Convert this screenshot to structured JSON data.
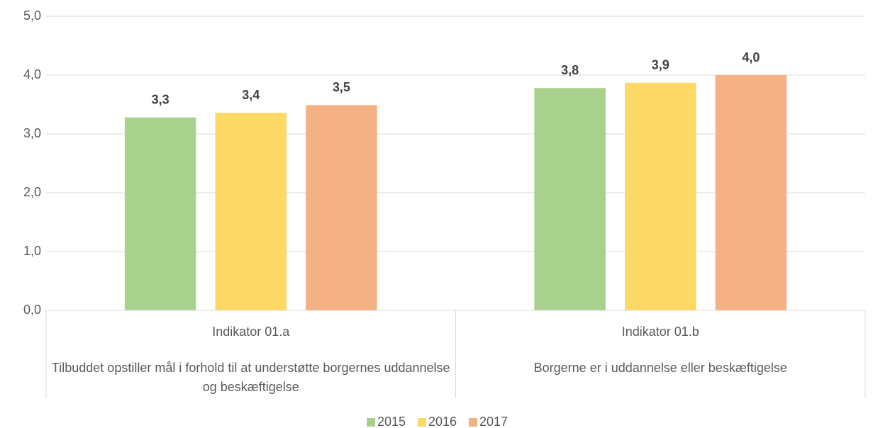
{
  "chart_data": {
    "type": "bar",
    "categories": [
      "Indikator 01.a",
      "Indikator 01.b"
    ],
    "category_descriptions": [
      "Tilbuddet opstiller mål i forhold til at understøtte borgernes uddannelse og beskæftigelse",
      "Borgerne er i uddannelse eller beskæftigelse"
    ],
    "series": [
      {
        "name": "2015",
        "color": "#a9d18e",
        "values": [
          3.28,
          3.78
        ],
        "value_labels": [
          "3,3",
          "3,8"
        ]
      },
      {
        "name": "2016",
        "color": "#ffd966",
        "values": [
          3.36,
          3.87
        ],
        "value_labels": [
          "3,4",
          "3,9"
        ]
      },
      {
        "name": "2017",
        "color": "#f4b183",
        "values": [
          3.49,
          4.0
        ],
        "value_labels": [
          "3,5",
          "4,0"
        ]
      }
    ],
    "ylim": [
      0,
      5
    ],
    "yticks": [
      {
        "value": 0,
        "label": "0,0"
      },
      {
        "value": 1,
        "label": "1,0"
      },
      {
        "value": 2,
        "label": "2,0"
      },
      {
        "value": 3,
        "label": "3,0"
      },
      {
        "value": 4,
        "label": "4,0"
      },
      {
        "value": 5,
        "label": "5,0"
      }
    ],
    "grid": true,
    "legend": "bottom"
  }
}
